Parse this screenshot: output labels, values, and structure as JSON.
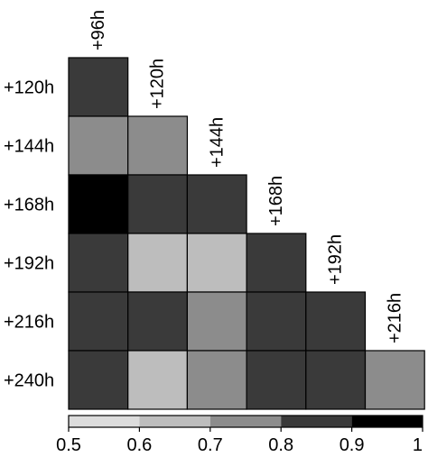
{
  "chart_data": {
    "type": "heatmap",
    "layout": "lower-triangle",
    "title": "",
    "xlabel": "",
    "ylabel": "",
    "columns": [
      "+96h",
      "+120h",
      "+144h",
      "+168h",
      "+192h",
      "+216h"
    ],
    "rows": [
      "+120h",
      "+144h",
      "+168h",
      "+192h",
      "+216h",
      "+240h"
    ],
    "values": [
      [
        0.85
      ],
      [
        0.75,
        0.75
      ],
      [
        0.95,
        0.85,
        0.85
      ],
      [
        0.85,
        0.65,
        0.65,
        0.85
      ],
      [
        0.85,
        0.85,
        0.75,
        0.85,
        0.85
      ],
      [
        0.85,
        0.65,
        0.75,
        0.85,
        0.85,
        0.75
      ]
    ],
    "colorbar": {
      "ticks": [
        "0.5",
        "0.6",
        "0.7",
        "0.8",
        "0.9",
        "1"
      ],
      "bins": [
        {
          "min": 0.5,
          "max": 0.6,
          "color": "#dcdcdc"
        },
        {
          "min": 0.6,
          "max": 0.7,
          "color": "#bdbdbd"
        },
        {
          "min": 0.7,
          "max": 0.8,
          "color": "#8c8c8c"
        },
        {
          "min": 0.8,
          "max": 0.9,
          "color": "#3a3a3a"
        },
        {
          "min": 0.9,
          "max": 1.0,
          "color": "#000000"
        }
      ]
    }
  }
}
